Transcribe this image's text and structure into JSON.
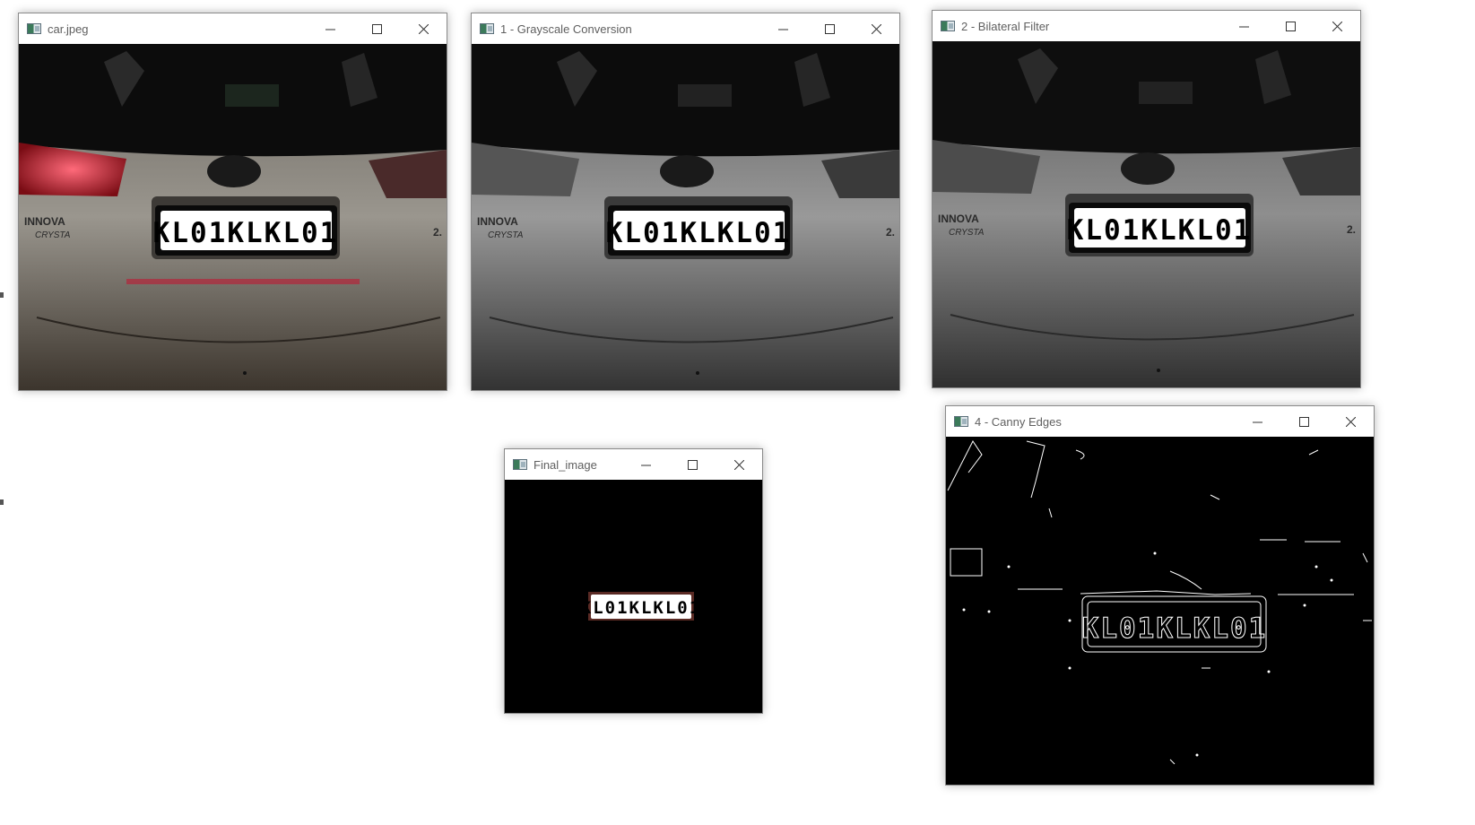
{
  "windows": {
    "car": {
      "title": "car.jpeg"
    },
    "gray": {
      "title": "1 - Grayscale Conversion"
    },
    "bilateral": {
      "title": "2 - Bilateral Filter"
    },
    "canny": {
      "title": "4 - Canny Edges"
    },
    "final": {
      "title": "Final_image"
    }
  },
  "plate": {
    "text": "KL01KLKL01"
  },
  "car_badge": {
    "brand": "INNOVA",
    "model": "CRYSTA",
    "variant": "2."
  },
  "controls": {
    "minimize": "minimize",
    "maximize": "maximize",
    "close": "close"
  },
  "colors": {
    "titlebar": "#ffffff",
    "title_text": "#5f5f5f",
    "taillight_red": "#c0182a"
  }
}
